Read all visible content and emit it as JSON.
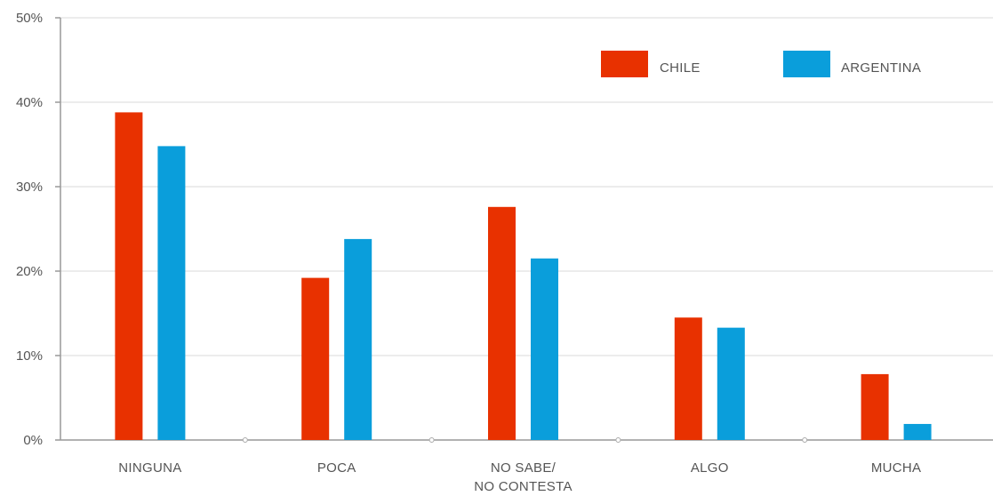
{
  "chart_data": {
    "type": "bar",
    "categories": [
      [
        "NINGUNA"
      ],
      [
        "POCA"
      ],
      [
        "NO SABE/",
        "NO CONTESTA"
      ],
      [
        "ALGO"
      ],
      [
        "MUCHA"
      ]
    ],
    "series": [
      {
        "name": "CHILE",
        "color": "#E83100",
        "values": [
          38.8,
          19.2,
          27.6,
          14.5,
          7.8
        ]
      },
      {
        "name": "ARGENTINA",
        "color": "#0A9EDB",
        "values": [
          34.8,
          23.8,
          21.5,
          13.3,
          1.9
        ]
      }
    ],
    "y_ticks": [
      "0%",
      "10%",
      "20%",
      "30%",
      "40%",
      "50%"
    ],
    "ylim": [
      0,
      50
    ],
    "grid": true,
    "legend_position": "top-right",
    "title": "",
    "xlabel": "",
    "ylabel": ""
  }
}
